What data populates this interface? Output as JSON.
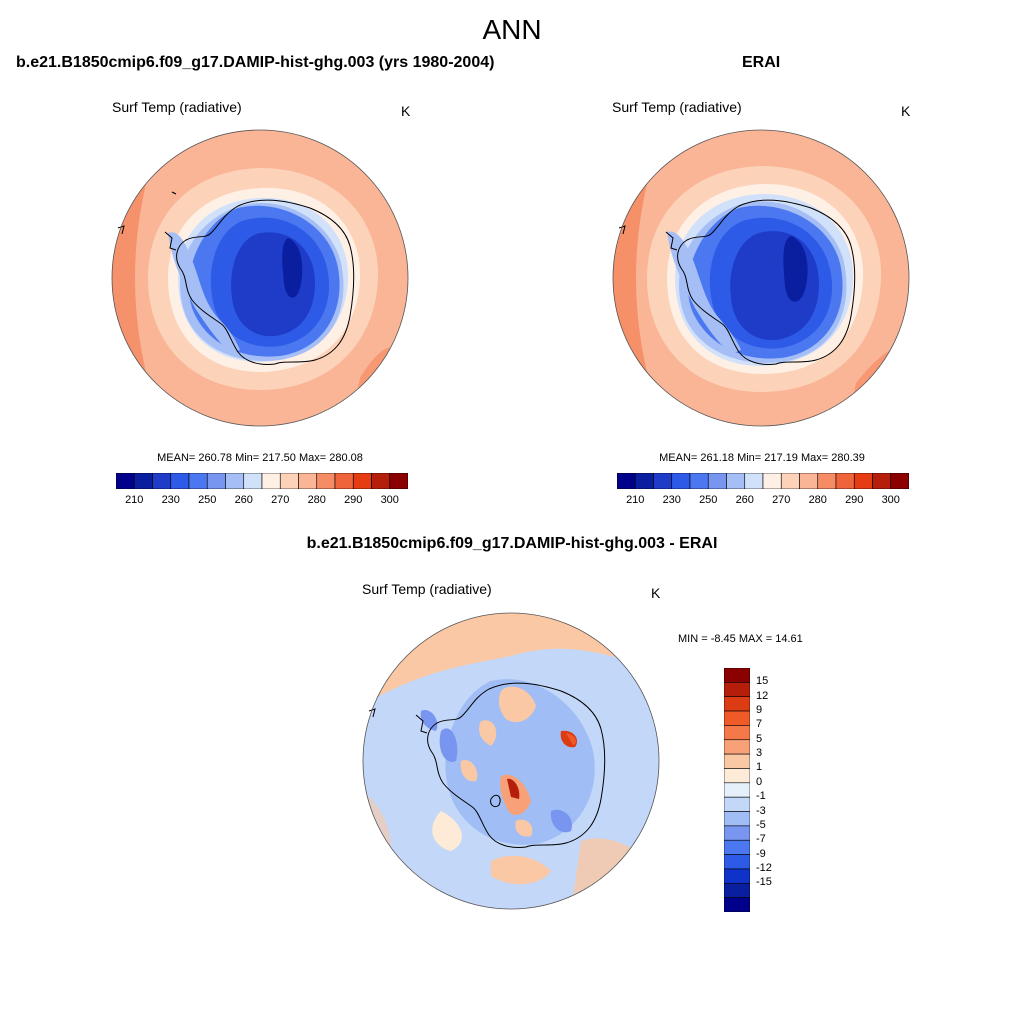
{
  "page": {
    "title": "ANN"
  },
  "panels": {
    "model": {
      "title": "b.e21.B1850cmip6.f09_g17.DAMIP-hist-ghg.003 (yrs 1980-2004)",
      "variable": "Surf Temp (radiative)",
      "units": "K",
      "stats": "MEAN= 260.78  Min= 217.50  Max= 280.08"
    },
    "obs": {
      "title": "ERAI",
      "variable": "Surf Temp (radiative)",
      "units": "K",
      "stats": "MEAN= 261.18  Min= 217.19  Max= 280.39"
    },
    "diff": {
      "title": "b.e21.B1850cmip6.f09_g17.DAMIP-hist-ghg.003 - ERAI",
      "variable": "Surf Temp (radiative)",
      "units": "K",
      "stats": "MIN =  -8.45 MAX =  14.61"
    }
  },
  "colorbars": {
    "abs": {
      "colors": [
        "#00008b",
        "#0a1ea0",
        "#1e3cc8",
        "#2d5ae6",
        "#4b78f0",
        "#7896f0",
        "#a5bef5",
        "#d2e1fa",
        "#fff0e6",
        "#fcd2b9",
        "#fab496",
        "#f58c64",
        "#f0643c",
        "#e63c14",
        "#b41e0a",
        "#8b0000"
      ],
      "labels": [
        "210",
        "230",
        "250",
        "260",
        "270",
        "280",
        "290",
        "300"
      ]
    },
    "diff": {
      "colors": [
        "#8b0000",
        "#b41e0a",
        "#dc3c14",
        "#f05a28",
        "#f5784b",
        "#f8a078",
        "#fac8a5",
        "#fdebd7",
        "#e6f0fa",
        "#c3d7f8",
        "#a0bef5",
        "#7896f0",
        "#4b78f0",
        "#2d5ae6",
        "#0f32c8",
        "#0a1ea0",
        "#00008b"
      ],
      "labels": [
        "15",
        "12",
        "9",
        "7",
        "5",
        "3",
        "1",
        "0",
        "-1",
        "-3",
        "-5",
        "-7",
        "-9",
        "-12",
        "-15"
      ]
    }
  }
}
